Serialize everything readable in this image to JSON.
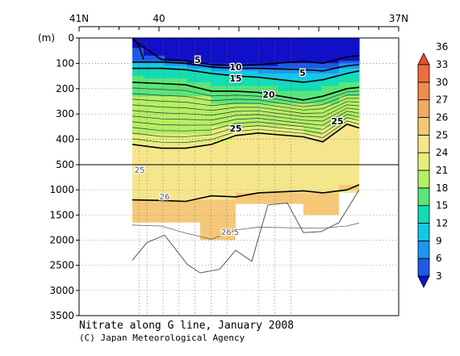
{
  "chart_data": {
    "type": "heatmap",
    "title": "Nitrate along G line, January 2008",
    "credit": "(C) Japan Meteorological Agency",
    "x_axis": {
      "quantity": "latitude",
      "range": [
        41,
        37
      ],
      "tick_labels": [
        {
          "value": 41,
          "label": "41N"
        },
        {
          "value": 40,
          "label": "40"
        },
        {
          "value": 37,
          "label": "37N"
        }
      ]
    },
    "y_axis": {
      "unit_label": "(m)",
      "upper_panel": {
        "range": [
          0,
          500
        ],
        "ticks": [
          0,
          100,
          200,
          300,
          400,
          500
        ]
      },
      "lower_panel": {
        "range": [
          500,
          3500
        ],
        "ticks": [
          1000,
          1500,
          2000,
          2500,
          3000,
          3500
        ]
      }
    },
    "colorbar": {
      "levels": [
        3,
        6,
        9,
        12,
        15,
        18,
        21,
        24,
        25,
        26,
        27,
        30,
        33,
        36
      ],
      "colors": [
        "#1010c8",
        "#1e5ae6",
        "#1e96f0",
        "#14c8e6",
        "#14dcb4",
        "#5ae678",
        "#b4f064",
        "#e6f07c",
        "#f5e68c",
        "#f5c878",
        "#f0aa64",
        "#f08c50",
        "#ec6e3c",
        "#e8502a"
      ]
    },
    "contours": {
      "labels": [
        "5",
        "5",
        "10",
        "15",
        "20",
        "25",
        "25",
        "25",
        "26",
        "26.5"
      ],
      "bold_levels": [
        5,
        10,
        15,
        20,
        25,
        26
      ],
      "depth_m": {
        "5": [
          5,
          85,
          90,
          105,
          110,
          105,
          92,
          100,
          75,
          70
        ],
        "10": [
          95,
          95,
          100,
          115,
          120,
          120,
          125,
          130,
          110,
          105
        ],
        "15": [
          120,
          120,
          125,
          140,
          150,
          155,
          175,
          165,
          140,
          130
        ],
        "20": [
          175,
          180,
          185,
          210,
          210,
          215,
          245,
          230,
          200,
          195
        ],
        "25": [
          420,
          435,
          435,
          420,
          385,
          375,
          390,
          410,
          340,
          355
        ],
        "26": [
          1200,
          1210,
          1230,
          1120,
          1140,
          1060,
          1020,
          1060,
          1000,
          900
        ],
        "26.5": [
          1700,
          1720,
          1860,
          1980,
          1800,
          1740,
          1760,
          1760,
          1720,
          1660
        ]
      }
    },
    "stations_lat": [
      40.25,
      40.15,
      39.95,
      39.75,
      39.55,
      39.35,
      39.15,
      38.75,
      38.55,
      38.35
    ],
    "bottom_depth_m": [
      2400,
      2050,
      1900,
      2480,
      2650,
      2580,
      2200,
      2420,
      1300,
      1260,
      1850,
      1830,
      1650,
      1000
    ]
  }
}
